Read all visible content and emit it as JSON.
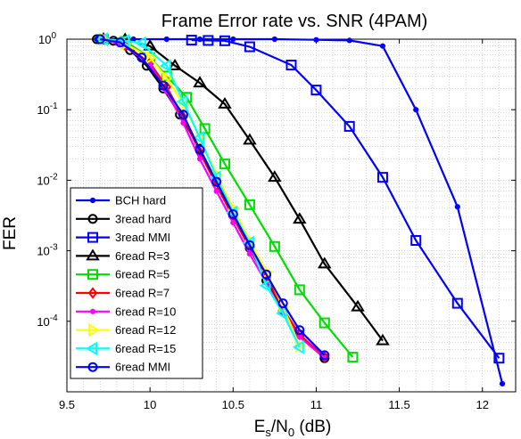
{
  "chart_data": {
    "type": "line",
    "title": "Frame Error rate vs. SNR (4PAM)",
    "xlabel": {
      "base": "E",
      "sub1": "s",
      "mid": "/N",
      "sub2": "0",
      "tail": " (dB)"
    },
    "ylabel": "FER",
    "xlim": [
      9.5,
      12.2
    ],
    "ylim": [
      1e-05,
      1
    ],
    "yscale": "log",
    "grid": true,
    "legend_position": "bottom-left",
    "x_ticks": [
      {
        "value": 9.5,
        "label": "9.5"
      },
      {
        "value": 10,
        "label": "10"
      },
      {
        "value": 10.5,
        "label": "10.5"
      },
      {
        "value": 11,
        "label": "11"
      },
      {
        "value": 11.5,
        "label": "11.5"
      },
      {
        "value": 12,
        "label": "12"
      }
    ],
    "y_ticks": [
      {
        "value": 1,
        "base": "10",
        "exp": "0"
      },
      {
        "value": 0.1,
        "base": "10",
        "exp": "-1"
      },
      {
        "value": 0.01,
        "base": "10",
        "exp": "-2"
      },
      {
        "value": 0.001,
        "base": "10",
        "exp": "-3"
      },
      {
        "value": 0.0001,
        "base": "10",
        "exp": "-4"
      }
    ],
    "series": [
      {
        "name": "BCH hard",
        "color": "#0000ff",
        "marker": "dot",
        "x": [
          9.68,
          9.9,
          10.1,
          10.3,
          10.5,
          10.75,
          11.0,
          11.2,
          11.4,
          11.6,
          11.85,
          12.12
        ],
        "y": [
          1,
          1,
          1,
          1,
          1,
          1,
          0.98,
          0.96,
          0.8,
          0.1,
          0.0042,
          1.3e-05
        ]
      },
      {
        "name": "3read hard",
        "color": "#000000",
        "marker": "circle",
        "x": [
          9.68,
          9.78,
          9.88,
          9.98,
          10.08,
          10.18,
          10.3,
          10.4,
          10.5,
          10.6,
          10.7,
          10.8,
          10.9,
          11.05
        ],
        "y": [
          1,
          0.95,
          0.7,
          0.42,
          0.2,
          0.085,
          0.028,
          0.0095,
          0.0032,
          0.0011,
          0.00038,
          0.00014,
          6.5e-05,
          3e-05
        ]
      },
      {
        "name": "3read MMI",
        "color": "#0000ff",
        "marker": "square",
        "x": [
          10.25,
          10.35,
          10.45,
          10.6,
          10.85,
          11.0,
          11.2,
          11.4,
          11.6,
          11.85,
          12.1
        ],
        "y": [
          0.97,
          0.96,
          0.95,
          0.78,
          0.43,
          0.19,
          0.058,
          0.011,
          0.0014,
          0.00018,
          3e-05
        ]
      },
      {
        "name": "6read R=3",
        "color": "#000000",
        "marker": "triangle-up",
        "x": [
          9.72,
          9.85,
          10.0,
          10.15,
          10.3,
          10.45,
          10.6,
          10.75,
          10.9,
          11.05,
          11.25,
          11.4
        ],
        "y": [
          1,
          0.99,
          0.8,
          0.42,
          0.24,
          0.12,
          0.037,
          0.011,
          0.0028,
          0.00065,
          0.00016,
          5.3e-05
        ]
      },
      {
        "name": "6read R=5",
        "color": "#00dd00",
        "marker": "square",
        "x": [
          9.72,
          9.85,
          10.0,
          10.1,
          10.22,
          10.33,
          10.45,
          10.6,
          10.75,
          10.9,
          11.05,
          11.22
        ],
        "y": [
          1,
          0.93,
          0.55,
          0.3,
          0.15,
          0.054,
          0.017,
          0.0045,
          0.00115,
          0.00028,
          9.5e-05,
          3.1e-05
        ]
      },
      {
        "name": "6read R=7",
        "color": "#ff0000",
        "marker": "diamond",
        "x": [
          9.72,
          9.85,
          10.0,
          10.1,
          10.2,
          10.3,
          10.4,
          10.5,
          10.6,
          10.7,
          10.8,
          10.9,
          11.05
        ],
        "y": [
          1,
          0.82,
          0.46,
          0.21,
          0.078,
          0.025,
          0.0085,
          0.003,
          0.0011,
          0.00042,
          0.00015,
          6.5e-05,
          3.1e-05
        ]
      },
      {
        "name": "6read R=10",
        "color": "#ff00ff",
        "marker": "dot",
        "x": [
          9.72,
          9.85,
          10.0,
          10.1,
          10.2,
          10.3,
          10.4,
          10.5,
          10.6,
          10.7,
          10.8,
          10.9,
          11.05
        ],
        "y": [
          1,
          0.8,
          0.43,
          0.18,
          0.065,
          0.02,
          0.007,
          0.0025,
          0.0009,
          0.00035,
          0.00013,
          6e-05,
          3e-05
        ]
      },
      {
        "name": "6read R=12",
        "color": "#ffff00",
        "marker": "triangle-right",
        "x": [
          9.72,
          9.85,
          10.0,
          10.1,
          10.2,
          10.3,
          10.4,
          10.5,
          10.6,
          10.7,
          10.8,
          10.9
        ],
        "y": [
          1,
          0.86,
          0.55,
          0.28,
          0.12,
          0.04,
          0.012,
          0.004,
          0.0014,
          0.0005,
          0.00016,
          4.5e-05
        ]
      },
      {
        "name": "6read R=15",
        "color": "#00ffff",
        "marker": "triangle-left",
        "x": [
          9.72,
          9.85,
          9.95,
          10.1,
          10.2,
          10.3,
          10.4,
          10.5,
          10.6,
          10.7,
          10.8,
          10.9
        ],
        "y": [
          1,
          0.95,
          0.88,
          0.42,
          0.13,
          0.04,
          0.011,
          0.0035,
          0.0013,
          0.00032,
          0.00013,
          4.3e-05
        ]
      },
      {
        "name": "6read MMI",
        "color": "#0000ff",
        "marker": "circle",
        "x": [
          9.7,
          9.82,
          9.95,
          10.08,
          10.2,
          10.3,
          10.4,
          10.5,
          10.6,
          10.7,
          10.8,
          10.9,
          11.05
        ],
        "y": [
          1,
          0.9,
          0.55,
          0.22,
          0.085,
          0.027,
          0.0095,
          0.0033,
          0.0012,
          0.00046,
          0.00018,
          7.5e-05,
          3.3e-05
        ]
      }
    ]
  }
}
